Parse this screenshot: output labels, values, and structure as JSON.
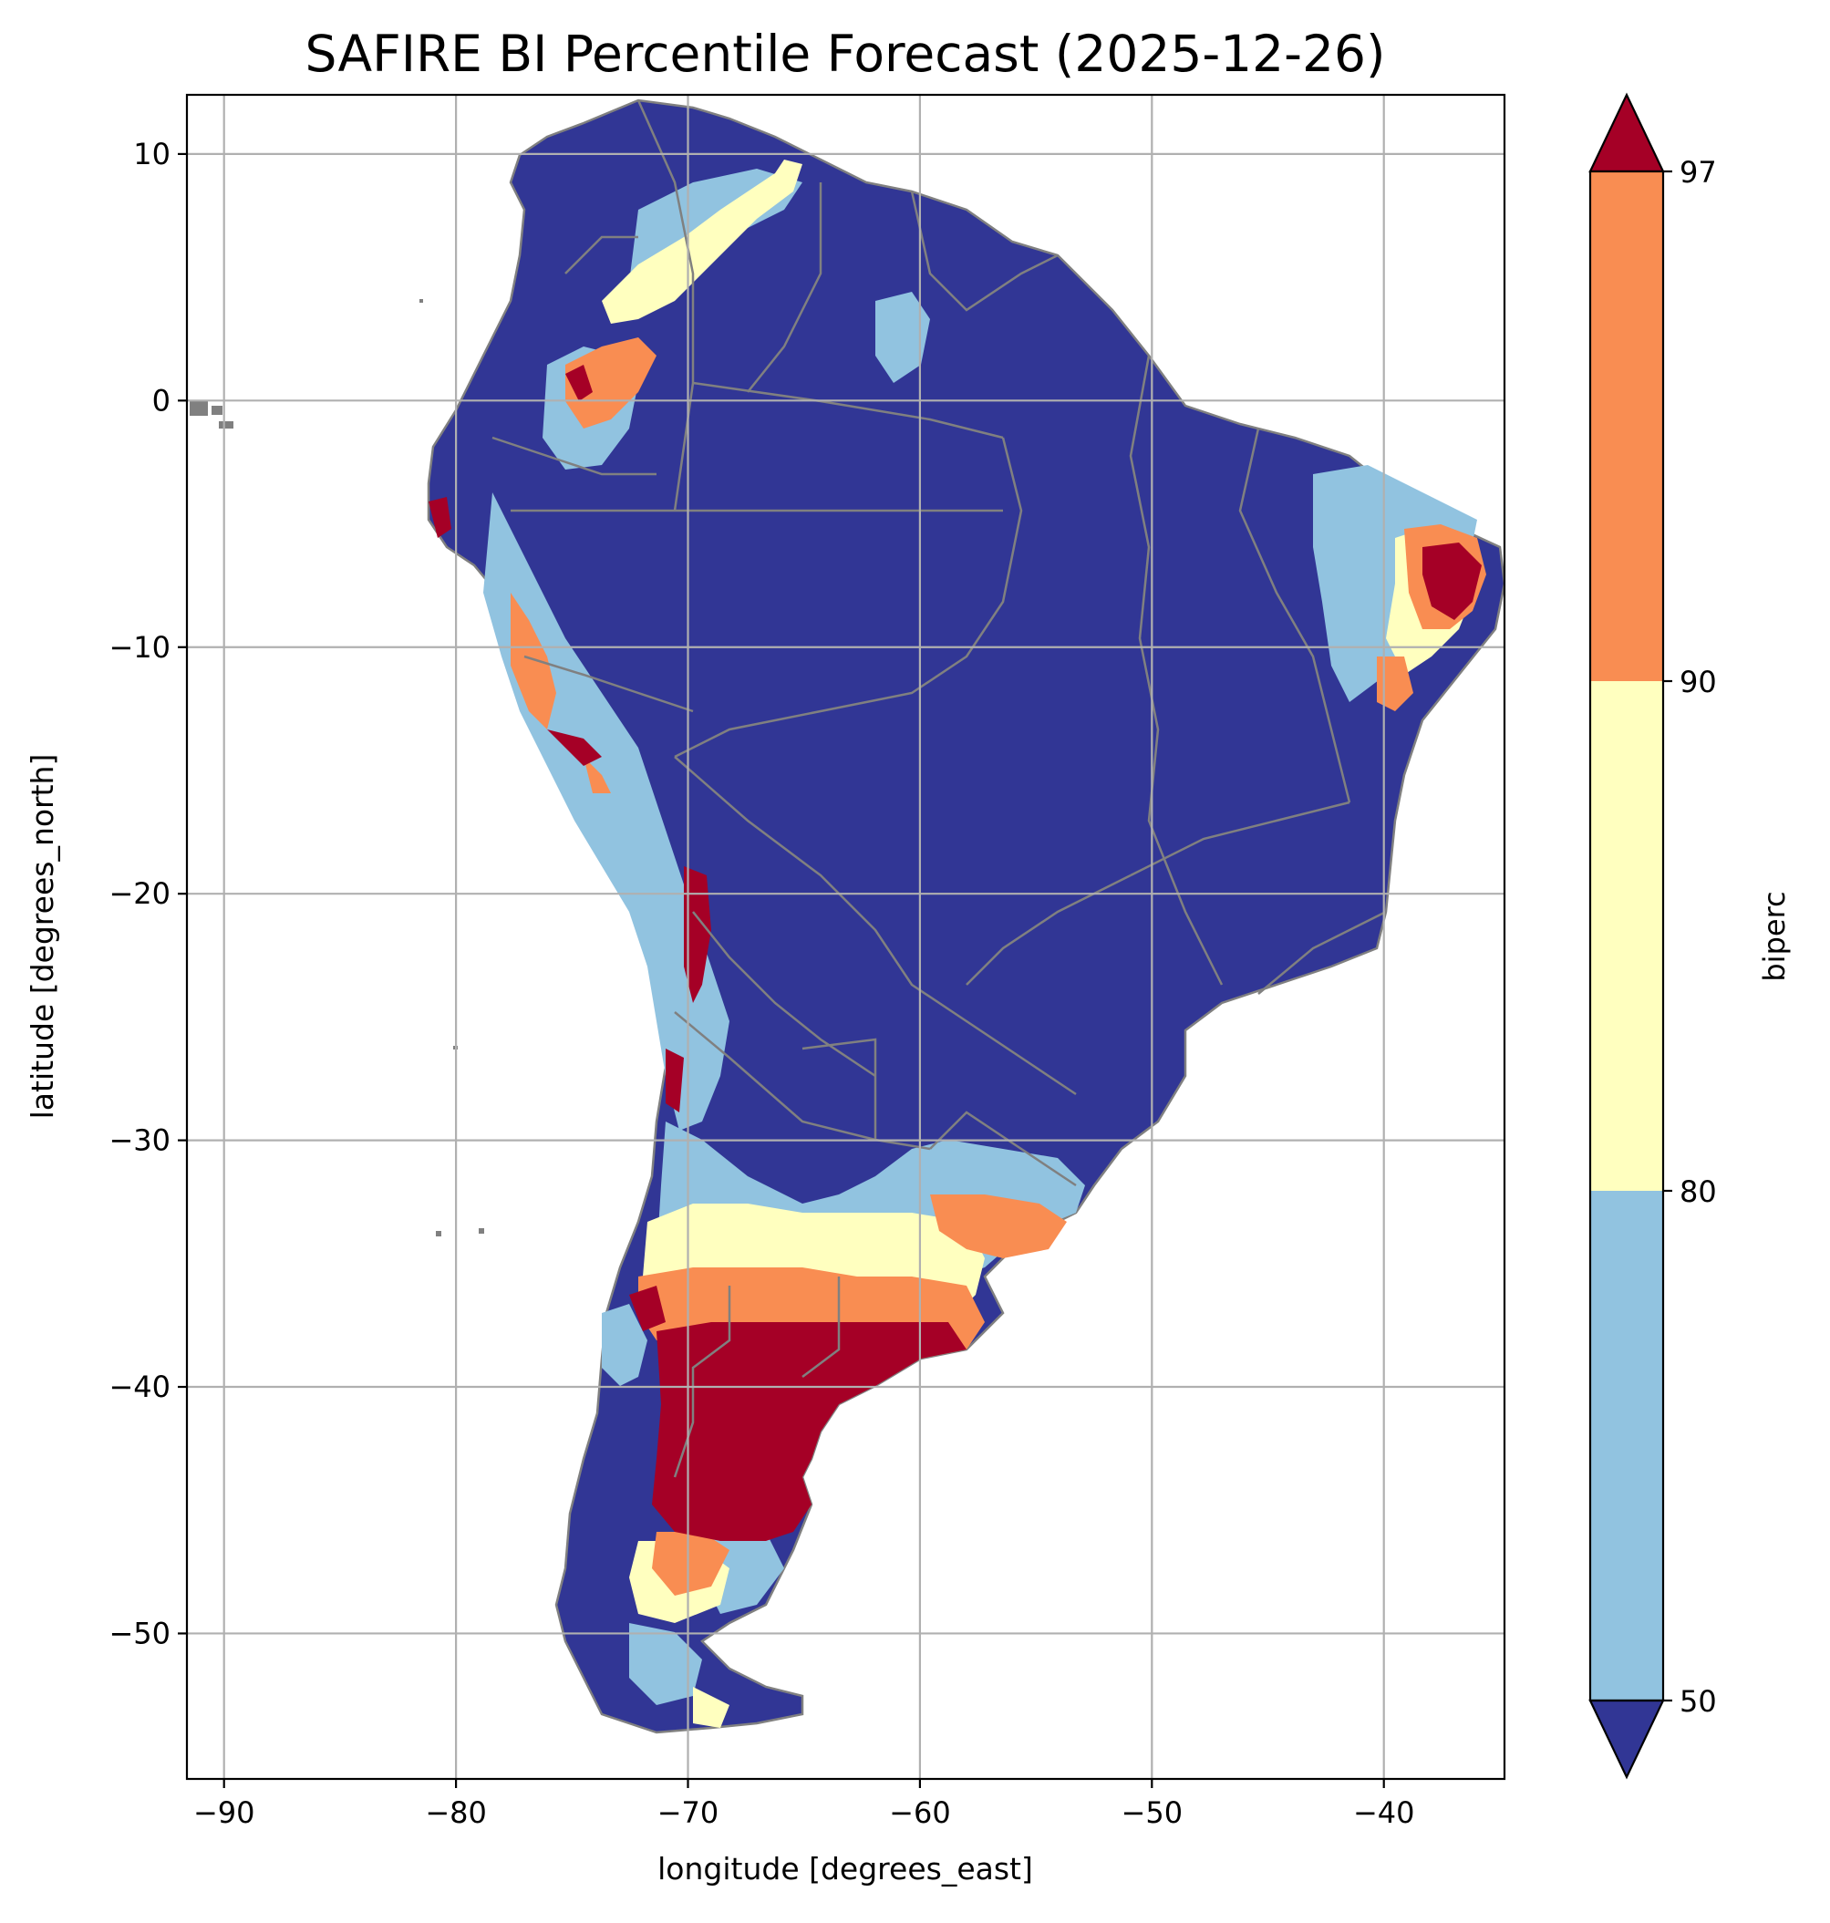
{
  "title": "SAFIRE BI Percentile Forecast (2025-12-26)",
  "xlabel": "longitude [degrees_east]",
  "ylabel": "latitude [degrees_north]",
  "colorbar_label": "biperc",
  "x_ticks": [
    -90,
    -80,
    -70,
    -60,
    -50,
    -40
  ],
  "y_ticks": [
    10,
    0,
    -10,
    -20,
    -30,
    -40,
    -50
  ],
  "x_tick_labels": [
    "−90",
    "−80",
    "−70",
    "−60",
    "−50",
    "−40"
  ],
  "y_tick_labels": [
    "10",
    "0",
    "−10",
    "−20",
    "−30",
    "−40",
    "−50"
  ],
  "xlim": [
    -91.6,
    -34.8
  ],
  "ylim": [
    -55.9,
    12.4
  ],
  "colorbar": {
    "levels": [
      50,
      80,
      90,
      97
    ],
    "level_labels": [
      "50",
      "80",
      "90",
      "97"
    ],
    "extend": "both",
    "colors": {
      "below_50": "#313695",
      "50_80": "#91c3e0",
      "80_90": "#ffffbf",
      "90_97": "#f98d52",
      "above_97": "#a50026"
    }
  },
  "map_colors": {
    "borders": "#808080",
    "grid": "#b0b0b0",
    "ocean": "#ffffff"
  },
  "chart_data": {
    "type": "heatmap",
    "region": "South America",
    "variable": "biperc",
    "x_range": [
      -91.6,
      -34.8
    ],
    "y_range": [
      -55.9,
      12.4
    ],
    "grid": true,
    "legend_placement": "right colorbar",
    "categories": [
      "<50",
      "50-80",
      "80-90",
      "90-97",
      ">97"
    ]
  }
}
